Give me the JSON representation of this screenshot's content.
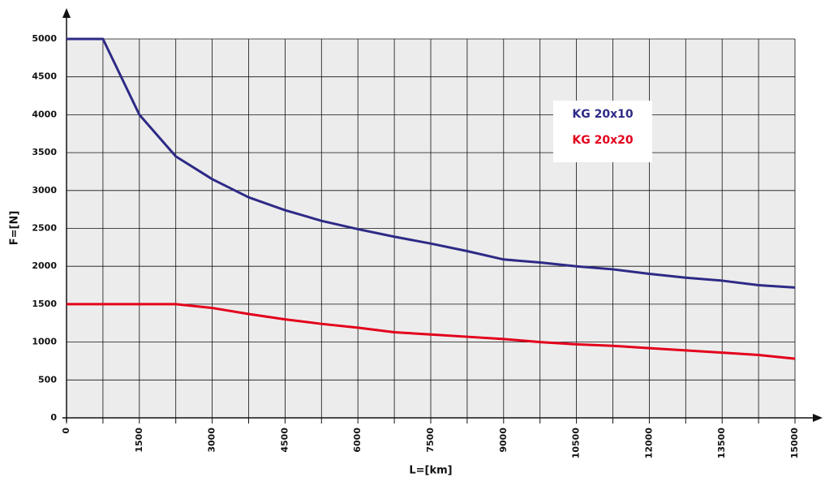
{
  "chart_data": {
    "type": "line",
    "xlabel": "L=[km]",
    "ylabel": "F=[N]",
    "x": [
      0,
      750,
      1500,
      2250,
      3000,
      3750,
      4500,
      5250,
      6000,
      6750,
      7500,
      8250,
      9000,
      9750,
      10500,
      11250,
      12000,
      12750,
      13500,
      14250,
      15000
    ],
    "series": [
      {
        "name": "KG 20x10",
        "color": "#2e2a86",
        "values": [
          5000,
          5000,
          4000,
          3450,
          3150,
          2910,
          2740,
          2600,
          2490,
          2390,
          2300,
          2200,
          2090,
          2050,
          2000,
          1960,
          1900,
          1850,
          1810,
          1750,
          1720
        ]
      },
      {
        "name": "KG 20x20",
        "color": "#e3001b",
        "values": [
          1500,
          1500,
          1500,
          1500,
          1450,
          1370,
          1300,
          1240,
          1190,
          1130,
          1100,
          1070,
          1040,
          1000,
          970,
          950,
          920,
          890,
          860,
          830,
          780
        ]
      }
    ],
    "xlim": [
      0,
      15000
    ],
    "xticks": [
      0,
      1500,
      3000,
      4500,
      6000,
      7500,
      9000,
      10500,
      12000,
      13500,
      15000
    ],
    "x_minor_ticks": [
      750,
      2250,
      3750,
      5250,
      6750,
      8250,
      9750,
      11250,
      12750,
      14250
    ],
    "ylim": [
      0,
      5000
    ],
    "yticks": [
      0,
      500,
      1000,
      1500,
      2000,
      2500,
      3000,
      3500,
      4000,
      4500,
      5000
    ],
    "grid": true
  }
}
